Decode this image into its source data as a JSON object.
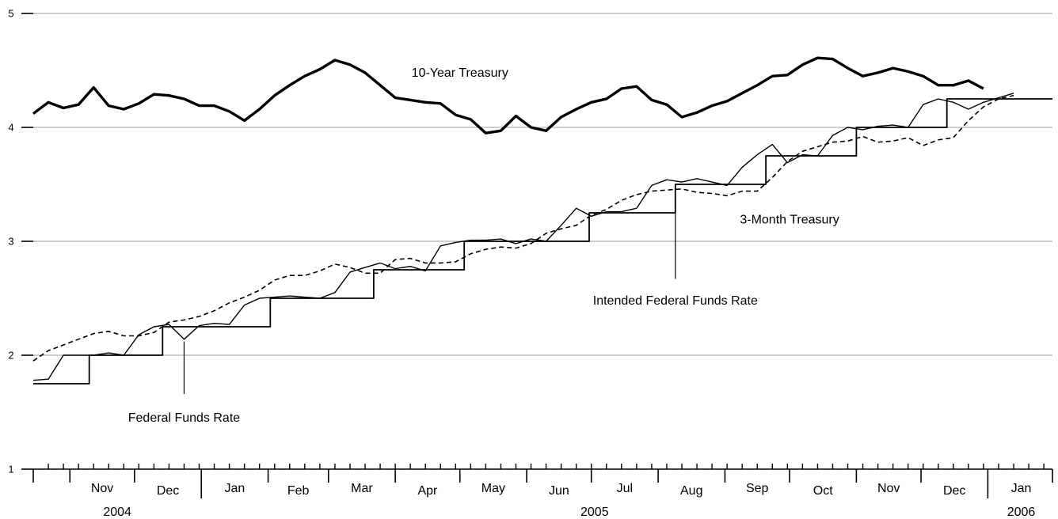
{
  "chart_data": {
    "type": "line",
    "title": "",
    "xlabel": "",
    "ylabel": "",
    "ylim": [
      1,
      5
    ],
    "y_ticks": [
      1,
      2,
      3,
      4,
      5
    ],
    "grid": "horizontal",
    "x_range": [
      "2004-10-15",
      "2006-01-31"
    ],
    "months": [
      {
        "label": "Nov",
        "start": "2004-11-01",
        "end": "2004-12-01"
      },
      {
        "label": "Dec",
        "start": "2004-12-01",
        "end": "2005-01-01"
      },
      {
        "label": "Jan",
        "start": "2005-01-01",
        "end": "2005-02-01"
      },
      {
        "label": "Feb",
        "start": "2005-02-01",
        "end": "2005-03-01"
      },
      {
        "label": "Mar",
        "start": "2005-03-01",
        "end": "2005-04-01"
      },
      {
        "label": "Apr",
        "start": "2005-04-01",
        "end": "2005-05-01"
      },
      {
        "label": "May",
        "start": "2005-05-01",
        "end": "2005-06-01"
      },
      {
        "label": "Jun",
        "start": "2005-06-01",
        "end": "2005-07-01"
      },
      {
        "label": "Jul",
        "start": "2005-07-01",
        "end": "2005-08-01"
      },
      {
        "label": "Aug",
        "start": "2005-08-01",
        "end": "2005-09-01"
      },
      {
        "label": "Sep",
        "start": "2005-09-01",
        "end": "2005-10-01"
      },
      {
        "label": "Oct",
        "start": "2005-10-01",
        "end": "2005-11-01"
      },
      {
        "label": "Nov",
        "start": "2005-11-01",
        "end": "2005-12-01"
      },
      {
        "label": "Dec",
        "start": "2005-12-01",
        "end": "2006-01-01"
      },
      {
        "label": "Jan",
        "start": "2006-01-01",
        "end": "2006-02-01"
      }
    ],
    "years": [
      {
        "label": "2004",
        "start": "2004-10-15",
        "end": "2005-01-01"
      },
      {
        "label": "2005",
        "start": "2005-01-01",
        "end": "2006-01-01"
      },
      {
        "label": "2006",
        "start": "2006-01-01",
        "end": "2006-02-01"
      }
    ],
    "series": [
      {
        "name": "10-Year Treasury",
        "style": "thick",
        "points": [
          [
            "2004-10-15",
            4.12
          ],
          [
            "2004-10-22",
            4.22
          ],
          [
            "2004-10-29",
            4.17
          ],
          [
            "2004-11-05",
            4.2
          ],
          [
            "2004-11-12",
            4.35
          ],
          [
            "2004-11-19",
            4.19
          ],
          [
            "2004-11-26",
            4.16
          ],
          [
            "2004-12-03",
            4.21
          ],
          [
            "2004-12-10",
            4.29
          ],
          [
            "2004-12-17",
            4.28
          ],
          [
            "2004-12-24",
            4.25
          ],
          [
            "2004-12-31",
            4.19
          ],
          [
            "2005-01-07",
            4.19
          ],
          [
            "2005-01-14",
            4.14
          ],
          [
            "2005-01-21",
            4.06
          ],
          [
            "2005-01-28",
            4.16
          ],
          [
            "2005-02-04",
            4.28
          ],
          [
            "2005-02-11",
            4.37
          ],
          [
            "2005-02-18",
            4.45
          ],
          [
            "2005-02-25",
            4.51
          ],
          [
            "2005-03-04",
            4.59
          ],
          [
            "2005-03-11",
            4.55
          ],
          [
            "2005-03-18",
            4.48
          ],
          [
            "2005-03-25",
            4.37
          ],
          [
            "2005-04-01",
            4.26
          ],
          [
            "2005-04-08",
            4.24
          ],
          [
            "2005-04-15",
            4.22
          ],
          [
            "2005-04-22",
            4.21
          ],
          [
            "2005-04-29",
            4.11
          ],
          [
            "2005-05-06",
            4.07
          ],
          [
            "2005-05-13",
            3.95
          ],
          [
            "2005-05-20",
            3.97
          ],
          [
            "2005-05-27",
            4.1
          ],
          [
            "2005-06-03",
            4.0
          ],
          [
            "2005-06-10",
            3.97
          ],
          [
            "2005-06-17",
            4.09
          ],
          [
            "2005-06-24",
            4.16
          ],
          [
            "2005-07-01",
            4.22
          ],
          [
            "2005-07-08",
            4.25
          ],
          [
            "2005-07-15",
            4.34
          ],
          [
            "2005-07-22",
            4.36
          ],
          [
            "2005-07-29",
            4.24
          ],
          [
            "2005-08-05",
            4.2
          ],
          [
            "2005-08-12",
            4.09
          ],
          [
            "2005-08-19",
            4.13
          ],
          [
            "2005-08-26",
            4.19
          ],
          [
            "2005-09-02",
            4.23
          ],
          [
            "2005-09-09",
            4.3
          ],
          [
            "2005-09-16",
            4.37
          ],
          [
            "2005-09-23",
            4.45
          ],
          [
            "2005-09-30",
            4.46
          ],
          [
            "2005-10-07",
            4.55
          ],
          [
            "2005-10-14",
            4.61
          ],
          [
            "2005-10-21",
            4.6
          ],
          [
            "2005-10-28",
            4.52
          ],
          [
            "2005-11-04",
            4.45
          ],
          [
            "2005-11-11",
            4.48
          ],
          [
            "2005-11-18",
            4.52
          ],
          [
            "2005-11-25",
            4.49
          ],
          [
            "2005-12-02",
            4.45
          ],
          [
            "2005-12-09",
            4.37
          ],
          [
            "2005-12-16",
            4.37
          ],
          [
            "2005-12-23",
            4.41
          ],
          [
            "2005-12-30",
            4.34
          ]
        ]
      },
      {
        "name": "3-Month Treasury",
        "style": "dashed",
        "points": [
          [
            "2004-10-15",
            1.95
          ],
          [
            "2004-10-22",
            2.04
          ],
          [
            "2004-10-29",
            2.09
          ],
          [
            "2004-11-05",
            2.14
          ],
          [
            "2004-11-12",
            2.19
          ],
          [
            "2004-11-19",
            2.21
          ],
          [
            "2004-11-26",
            2.17
          ],
          [
            "2004-12-03",
            2.17
          ],
          [
            "2004-12-10",
            2.2
          ],
          [
            "2004-12-17",
            2.29
          ],
          [
            "2004-12-24",
            2.31
          ],
          [
            "2004-12-31",
            2.34
          ],
          [
            "2005-01-07",
            2.39
          ],
          [
            "2005-01-14",
            2.46
          ],
          [
            "2005-01-21",
            2.51
          ],
          [
            "2005-01-28",
            2.57
          ],
          [
            "2005-02-04",
            2.66
          ],
          [
            "2005-02-11",
            2.7
          ],
          [
            "2005-02-18",
            2.7
          ],
          [
            "2005-02-25",
            2.74
          ],
          [
            "2005-03-04",
            2.8
          ],
          [
            "2005-03-11",
            2.77
          ],
          [
            "2005-03-18",
            2.72
          ],
          [
            "2005-03-25",
            2.72
          ],
          [
            "2005-04-01",
            2.84
          ],
          [
            "2005-04-08",
            2.85
          ],
          [
            "2005-04-15",
            2.81
          ],
          [
            "2005-04-22",
            2.81
          ],
          [
            "2005-04-29",
            2.82
          ],
          [
            "2005-05-06",
            2.89
          ],
          [
            "2005-05-13",
            2.93
          ],
          [
            "2005-05-20",
            2.95
          ],
          [
            "2005-05-27",
            2.94
          ],
          [
            "2005-06-03",
            2.98
          ],
          [
            "2005-06-10",
            3.07
          ],
          [
            "2005-06-17",
            3.11
          ],
          [
            "2005-06-24",
            3.14
          ],
          [
            "2005-07-01",
            3.23
          ],
          [
            "2005-07-08",
            3.28
          ],
          [
            "2005-07-15",
            3.36
          ],
          [
            "2005-07-22",
            3.41
          ],
          [
            "2005-07-29",
            3.44
          ],
          [
            "2005-08-05",
            3.45
          ],
          [
            "2005-08-12",
            3.46
          ],
          [
            "2005-08-19",
            3.43
          ],
          [
            "2005-08-26",
            3.42
          ],
          [
            "2005-09-02",
            3.4
          ],
          [
            "2005-09-09",
            3.44
          ],
          [
            "2005-09-16",
            3.44
          ],
          [
            "2005-09-23",
            3.56
          ],
          [
            "2005-09-30",
            3.7
          ],
          [
            "2005-10-07",
            3.79
          ],
          [
            "2005-10-14",
            3.83
          ],
          [
            "2005-10-21",
            3.87
          ],
          [
            "2005-10-28",
            3.88
          ],
          [
            "2005-11-04",
            3.92
          ],
          [
            "2005-11-11",
            3.87
          ],
          [
            "2005-11-18",
            3.88
          ],
          [
            "2005-11-25",
            3.91
          ],
          [
            "2005-12-02",
            3.84
          ],
          [
            "2005-12-09",
            3.89
          ],
          [
            "2005-12-16",
            3.91
          ],
          [
            "2005-12-23",
            4.06
          ],
          [
            "2005-12-30",
            4.18
          ],
          [
            "2006-01-06",
            4.25
          ],
          [
            "2006-01-13",
            4.28
          ]
        ]
      },
      {
        "name": "Federal Funds Rate",
        "style": "thin",
        "points": [
          [
            "2004-10-15",
            1.78
          ],
          [
            "2004-10-22",
            1.79
          ],
          [
            "2004-10-29",
            2.0
          ],
          [
            "2004-11-05",
            2.0
          ],
          [
            "2004-11-12",
            2.0
          ],
          [
            "2004-11-19",
            2.02
          ],
          [
            "2004-11-26",
            2.0
          ],
          [
            "2004-12-03",
            2.18
          ],
          [
            "2004-12-10",
            2.25
          ],
          [
            "2004-12-17",
            2.27
          ],
          [
            "2004-12-24",
            2.14
          ],
          [
            "2004-12-31",
            2.26
          ],
          [
            "2005-01-07",
            2.28
          ],
          [
            "2005-01-14",
            2.27
          ],
          [
            "2005-01-21",
            2.44
          ],
          [
            "2005-01-28",
            2.5
          ],
          [
            "2005-02-04",
            2.51
          ],
          [
            "2005-02-11",
            2.52
          ],
          [
            "2005-02-18",
            2.51
          ],
          [
            "2005-02-25",
            2.5
          ],
          [
            "2005-03-04",
            2.55
          ],
          [
            "2005-03-11",
            2.73
          ],
          [
            "2005-03-18",
            2.77
          ],
          [
            "2005-03-25",
            2.81
          ],
          [
            "2005-04-01",
            2.76
          ],
          [
            "2005-04-08",
            2.78
          ],
          [
            "2005-04-15",
            2.74
          ],
          [
            "2005-04-22",
            2.96
          ],
          [
            "2005-04-29",
            2.99
          ],
          [
            "2005-05-06",
            3.01
          ],
          [
            "2005-05-13",
            3.01
          ],
          [
            "2005-05-20",
            3.02
          ],
          [
            "2005-05-27",
            2.98
          ],
          [
            "2005-06-03",
            3.02
          ],
          [
            "2005-06-10",
            3.0
          ],
          [
            "2005-06-17",
            3.14
          ],
          [
            "2005-06-24",
            3.29
          ],
          [
            "2005-07-01",
            3.22
          ],
          [
            "2005-07-08",
            3.26
          ],
          [
            "2005-07-15",
            3.26
          ],
          [
            "2005-07-22",
            3.29
          ],
          [
            "2005-07-29",
            3.49
          ],
          [
            "2005-08-05",
            3.54
          ],
          [
            "2005-08-12",
            3.52
          ],
          [
            "2005-08-19",
            3.55
          ],
          [
            "2005-08-26",
            3.52
          ],
          [
            "2005-09-02",
            3.49
          ],
          [
            "2005-09-09",
            3.65
          ],
          [
            "2005-09-16",
            3.76
          ],
          [
            "2005-09-23",
            3.85
          ],
          [
            "2005-09-30",
            3.69
          ],
          [
            "2005-10-07",
            3.76
          ],
          [
            "2005-10-14",
            3.75
          ],
          [
            "2005-10-21",
            3.93
          ],
          [
            "2005-10-28",
            4.0
          ],
          [
            "2005-11-04",
            3.98
          ],
          [
            "2005-11-11",
            4.01
          ],
          [
            "2005-11-18",
            4.02
          ],
          [
            "2005-11-25",
            4.0
          ],
          [
            "2005-12-02",
            4.2
          ],
          [
            "2005-12-09",
            4.25
          ],
          [
            "2005-12-16",
            4.22
          ],
          [
            "2005-12-23",
            4.16
          ],
          [
            "2005-12-30",
            4.22
          ],
          [
            "2006-01-06",
            4.26
          ],
          [
            "2006-01-13",
            4.3
          ]
        ]
      },
      {
        "name": "Intended Federal Funds Rate",
        "style": "step",
        "points": [
          [
            "2004-10-15",
            1.75
          ],
          [
            "2004-11-10",
            2.0
          ],
          [
            "2004-12-14",
            2.25
          ],
          [
            "2005-02-02",
            2.5
          ],
          [
            "2005-03-22",
            2.75
          ],
          [
            "2005-05-03",
            3.0
          ],
          [
            "2005-06-30",
            3.25
          ],
          [
            "2005-08-09",
            3.5
          ],
          [
            "2005-09-20",
            3.75
          ],
          [
            "2005-11-01",
            4.0
          ],
          [
            "2005-12-13",
            4.25
          ],
          [
            "2006-01-31",
            4.25
          ]
        ]
      }
    ],
    "annotations": [
      {
        "text": "10-Year Treasury",
        "series": "10-Year Treasury",
        "at": [
          "2005-05-01",
          4.48
        ]
      },
      {
        "text": "3-Month Treasury",
        "series": "3-Month Treasury",
        "at": [
          "2005-10-01",
          3.19
        ]
      },
      {
        "text": "Intended Federal Funds Rate",
        "series": "Intended Federal Funds Rate",
        "pointer_x": "2005-08-09",
        "pointer_from": 3.25,
        "pointer_to": 2.67,
        "at": [
          "2005-08-09",
          2.48
        ]
      },
      {
        "text": "Federal Funds Rate",
        "series": "Federal Funds Rate",
        "pointer_x": "2004-12-24",
        "pointer_from": 2.12,
        "pointer_to": 1.66,
        "at": [
          "2004-12-24",
          1.45
        ]
      }
    ]
  }
}
